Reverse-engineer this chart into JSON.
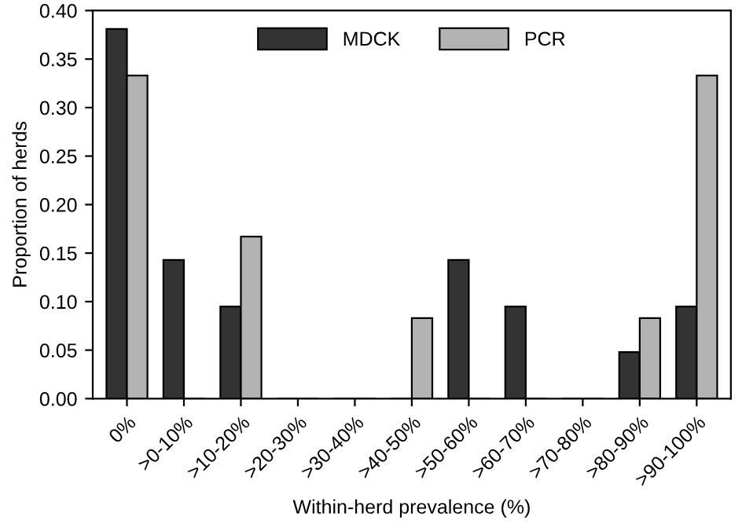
{
  "chart_data": {
    "type": "bar",
    "xlabel": "Within-herd prevalence (%)",
    "ylabel": "Proportion of herds",
    "categories": [
      "0%",
      ">0-10%",
      ">10-20%",
      ">20-30%",
      ">30-40%",
      ">40-50%",
      ">50-60%",
      ">60-70%",
      ">70-80%",
      ">80-90%",
      ">90-100%"
    ],
    "series": [
      {
        "name": "MDCK",
        "color": "#333333",
        "values": [
          0.381,
          0.143,
          0.095,
          0,
          0,
          0,
          0.143,
          0.095,
          0,
          0.048,
          0.095
        ]
      },
      {
        "name": "PCR",
        "color": "#b3b3b3",
        "values": [
          0.333,
          0,
          0.167,
          0,
          0,
          0.083,
          0,
          0,
          0,
          0.083,
          0.333
        ]
      }
    ],
    "ylim": [
      0,
      0.4
    ],
    "yticks": [
      {
        "value": 0,
        "label": "0.00"
      },
      {
        "value": 0.05,
        "label": "0.05"
      },
      {
        "value": 0.1,
        "label": "0.10"
      },
      {
        "value": 0.15,
        "label": "0.15"
      },
      {
        "value": 0.2,
        "label": "0.20"
      },
      {
        "value": 0.25,
        "label": "0.25"
      },
      {
        "value": 0.3,
        "label": "0.30"
      },
      {
        "value": 0.35,
        "label": "0.35"
      },
      {
        "value": 0.4,
        "label": "0.40"
      }
    ],
    "legend": "top",
    "grid": false
  }
}
